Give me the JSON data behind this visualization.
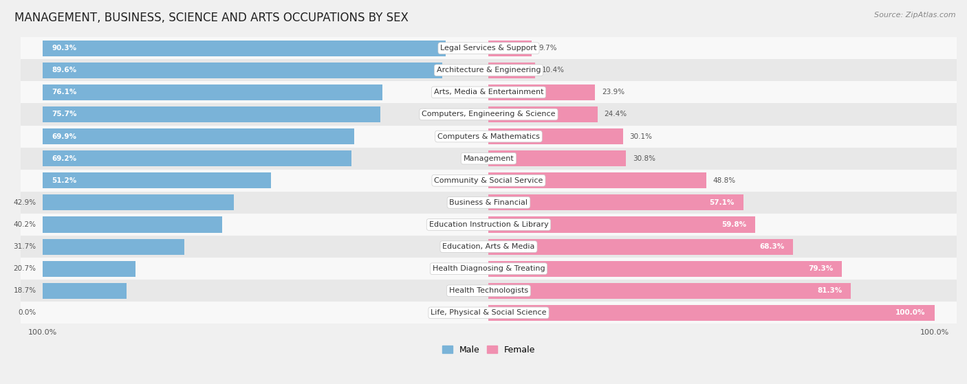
{
  "title": "MANAGEMENT, BUSINESS, SCIENCE AND ARTS OCCUPATIONS BY SEX",
  "source": "Source: ZipAtlas.com",
  "categories": [
    "Legal Services & Support",
    "Architecture & Engineering",
    "Arts, Media & Entertainment",
    "Computers, Engineering & Science",
    "Computers & Mathematics",
    "Management",
    "Community & Social Service",
    "Business & Financial",
    "Education Instruction & Library",
    "Education, Arts & Media",
    "Health Diagnosing & Treating",
    "Health Technologists",
    "Life, Physical & Social Science"
  ],
  "male": [
    90.3,
    89.6,
    76.1,
    75.7,
    69.9,
    69.2,
    51.2,
    42.9,
    40.2,
    31.7,
    20.7,
    18.7,
    0.0
  ],
  "female": [
    9.7,
    10.4,
    23.9,
    24.4,
    30.1,
    30.8,
    48.8,
    57.1,
    59.8,
    68.3,
    79.3,
    81.3,
    100.0
  ],
  "male_color": "#7ab3d8",
  "female_color": "#f090b0",
  "bg_color": "#f0f0f0",
  "row_bg_even": "#f8f8f8",
  "row_bg_odd": "#e8e8e8",
  "title_fontsize": 12,
  "label_fontsize": 8,
  "bar_label_fontsize": 7.5,
  "legend_fontsize": 9,
  "source_fontsize": 8
}
